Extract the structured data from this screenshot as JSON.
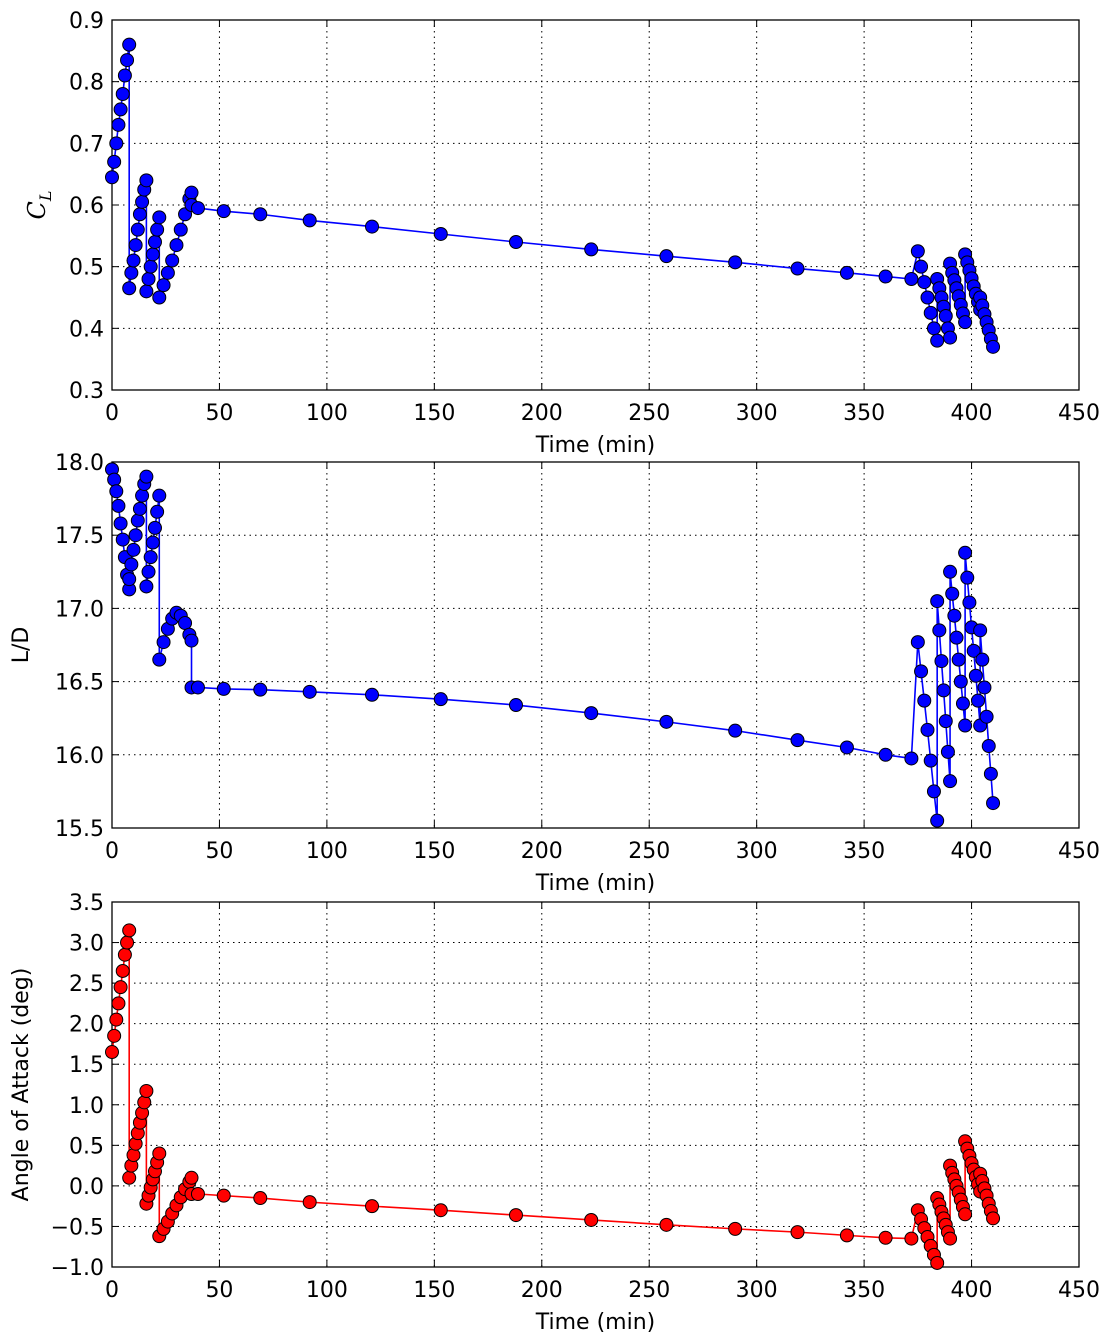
{
  "chart_data": [
    {
      "type": "line",
      "xlabel": "Time (min)",
      "ylabel": {
        "text": "C",
        "subscript": "L"
      },
      "x": [
        0,
        1,
        2,
        3,
        4,
        5,
        6,
        7,
        8,
        8,
        9,
        10,
        11,
        12,
        13,
        14,
        15,
        16,
        16,
        17,
        18,
        19,
        20,
        21,
        22,
        22,
        24,
        26,
        28,
        30,
        32,
        34,
        36,
        37,
        37,
        40,
        52,
        69,
        92,
        121,
        153,
        188,
        223,
        258,
        290,
        319,
        342,
        360,
        372,
        375,
        376.5,
        378,
        379.5,
        381,
        382.5,
        384,
        384,
        385,
        386,
        387,
        388,
        389,
        390,
        390,
        391,
        392,
        393,
        394,
        395,
        396,
        397,
        397,
        398,
        399,
        400,
        401,
        402,
        403,
        404,
        404,
        405,
        406,
        407,
        408,
        409,
        410
      ],
      "series": [
        {
          "color": "#0000ff",
          "values": [
            0.645,
            0.67,
            0.7,
            0.73,
            0.755,
            0.78,
            0.81,
            0.835,
            0.86,
            0.465,
            0.49,
            0.51,
            0.535,
            0.56,
            0.585,
            0.605,
            0.625,
            0.64,
            0.46,
            0.48,
            0.5,
            0.52,
            0.54,
            0.56,
            0.58,
            0.45,
            0.47,
            0.49,
            0.51,
            0.535,
            0.56,
            0.585,
            0.61,
            0.62,
            0.6,
            0.595,
            0.59,
            0.585,
            0.575,
            0.565,
            0.553,
            0.54,
            0.528,
            0.517,
            0.507,
            0.497,
            0.49,
            0.484,
            0.48,
            0.525,
            0.5,
            0.475,
            0.45,
            0.425,
            0.4,
            0.38,
            0.48,
            0.465,
            0.45,
            0.435,
            0.42,
            0.4,
            0.385,
            0.505,
            0.49,
            0.478,
            0.465,
            0.452,
            0.438,
            0.424,
            0.41,
            0.52,
            0.507,
            0.494,
            0.481,
            0.468,
            0.456,
            0.443,
            0.43,
            0.45,
            0.437,
            0.423,
            0.41,
            0.397,
            0.383,
            0.37
          ]
        }
      ],
      "xlim": [
        0,
        450
      ],
      "xticks": [
        0,
        50,
        100,
        150,
        200,
        250,
        300,
        350,
        400,
        450
      ],
      "ylim": [
        0.3,
        0.9
      ],
      "yticks": [
        0.3,
        0.4,
        0.5,
        0.6,
        0.7,
        0.8,
        0.9
      ],
      "grid": true,
      "marker": "o"
    },
    {
      "type": "line",
      "xlabel": "Time (min)",
      "ylabel": "L/D",
      "x": [
        0,
        1,
        2,
        3,
        4,
        5,
        6,
        7,
        8,
        8,
        9,
        10,
        11,
        12,
        13,
        14,
        15,
        16,
        16,
        17,
        18,
        19,
        20,
        21,
        22,
        22,
        24,
        26,
        28,
        30,
        32,
        34,
        36,
        37,
        37,
        40,
        52,
        69,
        92,
        121,
        153,
        188,
        223,
        258,
        290,
        319,
        342,
        360,
        372,
        375,
        376.5,
        378,
        379.5,
        381,
        382.5,
        384,
        384,
        385,
        386,
        387,
        388,
        389,
        390,
        390,
        391,
        392,
        393,
        394,
        395,
        396,
        397,
        397,
        398,
        399,
        400,
        401,
        402,
        403,
        404,
        404,
        405,
        406,
        407,
        408,
        409,
        410
      ],
      "series": [
        {
          "color": "#0000ff",
          "values": [
            17.95,
            17.88,
            17.8,
            17.7,
            17.58,
            17.47,
            17.35,
            17.23,
            17.13,
            17.2,
            17.3,
            17.4,
            17.5,
            17.6,
            17.68,
            17.77,
            17.85,
            17.9,
            17.15,
            17.25,
            17.35,
            17.45,
            17.55,
            17.66,
            17.77,
            16.65,
            16.77,
            16.86,
            16.93,
            16.97,
            16.95,
            16.9,
            16.82,
            16.78,
            16.46,
            16.46,
            16.45,
            16.445,
            16.43,
            16.41,
            16.38,
            16.34,
            16.285,
            16.225,
            16.165,
            16.1,
            16.05,
            16.0,
            15.975,
            16.77,
            16.57,
            16.37,
            16.17,
            15.96,
            15.75,
            15.55,
            17.05,
            16.85,
            16.64,
            16.44,
            16.23,
            16.02,
            15.82,
            17.25,
            17.1,
            16.95,
            16.8,
            16.65,
            16.5,
            16.35,
            16.2,
            17.38,
            17.21,
            17.04,
            16.87,
            16.71,
            16.54,
            16.37,
            16.2,
            16.85,
            16.65,
            16.46,
            16.26,
            16.06,
            15.87,
            15.67
          ]
        }
      ],
      "xlim": [
        0,
        450
      ],
      "xticks": [
        0,
        50,
        100,
        150,
        200,
        250,
        300,
        350,
        400,
        450
      ],
      "ylim": [
        15.5,
        18.0
      ],
      "yticks": [
        15.5,
        {
          "value": 16,
          "label": "16.0"
        },
        16.5,
        {
          "value": 17,
          "label": "17.0"
        },
        17.5,
        {
          "value": 18,
          "label": "18.0"
        }
      ],
      "grid": true,
      "marker": "o"
    },
    {
      "type": "line",
      "xlabel": "Time (min)",
      "ylabel": "Angle of Attack (deg)",
      "x": [
        0,
        1,
        2,
        3,
        4,
        5,
        6,
        7,
        8,
        8,
        9,
        10,
        11,
        12,
        13,
        14,
        15,
        16,
        16,
        17,
        18,
        19,
        20,
        21,
        22,
        22,
        24,
        26,
        28,
        30,
        32,
        34,
        36,
        37,
        37,
        40,
        52,
        69,
        92,
        121,
        153,
        188,
        223,
        258,
        290,
        319,
        342,
        360,
        372,
        375,
        376.5,
        378,
        379.5,
        381,
        382.5,
        384,
        384,
        385,
        386,
        387,
        388,
        389,
        390,
        390,
        391,
        392,
        393,
        394,
        395,
        396,
        397,
        397,
        398,
        399,
        400,
        401,
        402,
        403,
        404,
        404,
        405,
        406,
        407,
        408,
        409,
        410
      ],
      "series": [
        {
          "color": "#ff0000",
          "values": [
            1.65,
            1.85,
            2.05,
            2.25,
            2.45,
            2.65,
            2.85,
            3.0,
            3.15,
            0.1,
            0.25,
            0.38,
            0.52,
            0.65,
            0.78,
            0.9,
            1.03,
            1.17,
            -0.22,
            -0.12,
            -0.02,
            0.08,
            0.18,
            0.29,
            0.4,
            -0.62,
            -0.53,
            -0.44,
            -0.34,
            -0.24,
            -0.14,
            -0.04,
            0.05,
            0.1,
            -0.1,
            -0.1,
            -0.12,
            -0.15,
            -0.2,
            -0.25,
            -0.3,
            -0.36,
            -0.42,
            -0.48,
            -0.53,
            -0.57,
            -0.61,
            -0.64,
            -0.65,
            -0.3,
            -0.41,
            -0.52,
            -0.63,
            -0.74,
            -0.85,
            -0.95,
            -0.15,
            -0.23,
            -0.32,
            -0.4,
            -0.48,
            -0.57,
            -0.65,
            0.25,
            0.16,
            0.08,
            0,
            -0.08,
            -0.17,
            -0.26,
            -0.35,
            0.55,
            0.46,
            0.37,
            0.28,
            0.2,
            0.11,
            0.02,
            -0.07,
            0.15,
            0.06,
            -0.03,
            -0.12,
            -0.22,
            -0.31,
            -0.4
          ]
        }
      ],
      "xlim": [
        0,
        450
      ],
      "xticks": [
        0,
        50,
        100,
        150,
        200,
        250,
        300,
        350,
        400,
        450
      ],
      "ylim": [
        -1.0,
        3.5
      ],
      "yticks": [
        {
          "value": -1,
          "label": "−1.0"
        },
        {
          "value": -0.5,
          "label": "−0.5"
        },
        {
          "value": 0,
          "label": "0.0"
        },
        0.5,
        {
          "value": 1,
          "label": "1.0"
        },
        1.5,
        {
          "value": 2,
          "label": "2.0"
        },
        2.5,
        {
          "value": 3,
          "label": "3.0"
        },
        3.5
      ],
      "grid": true,
      "marker": "o"
    }
  ]
}
